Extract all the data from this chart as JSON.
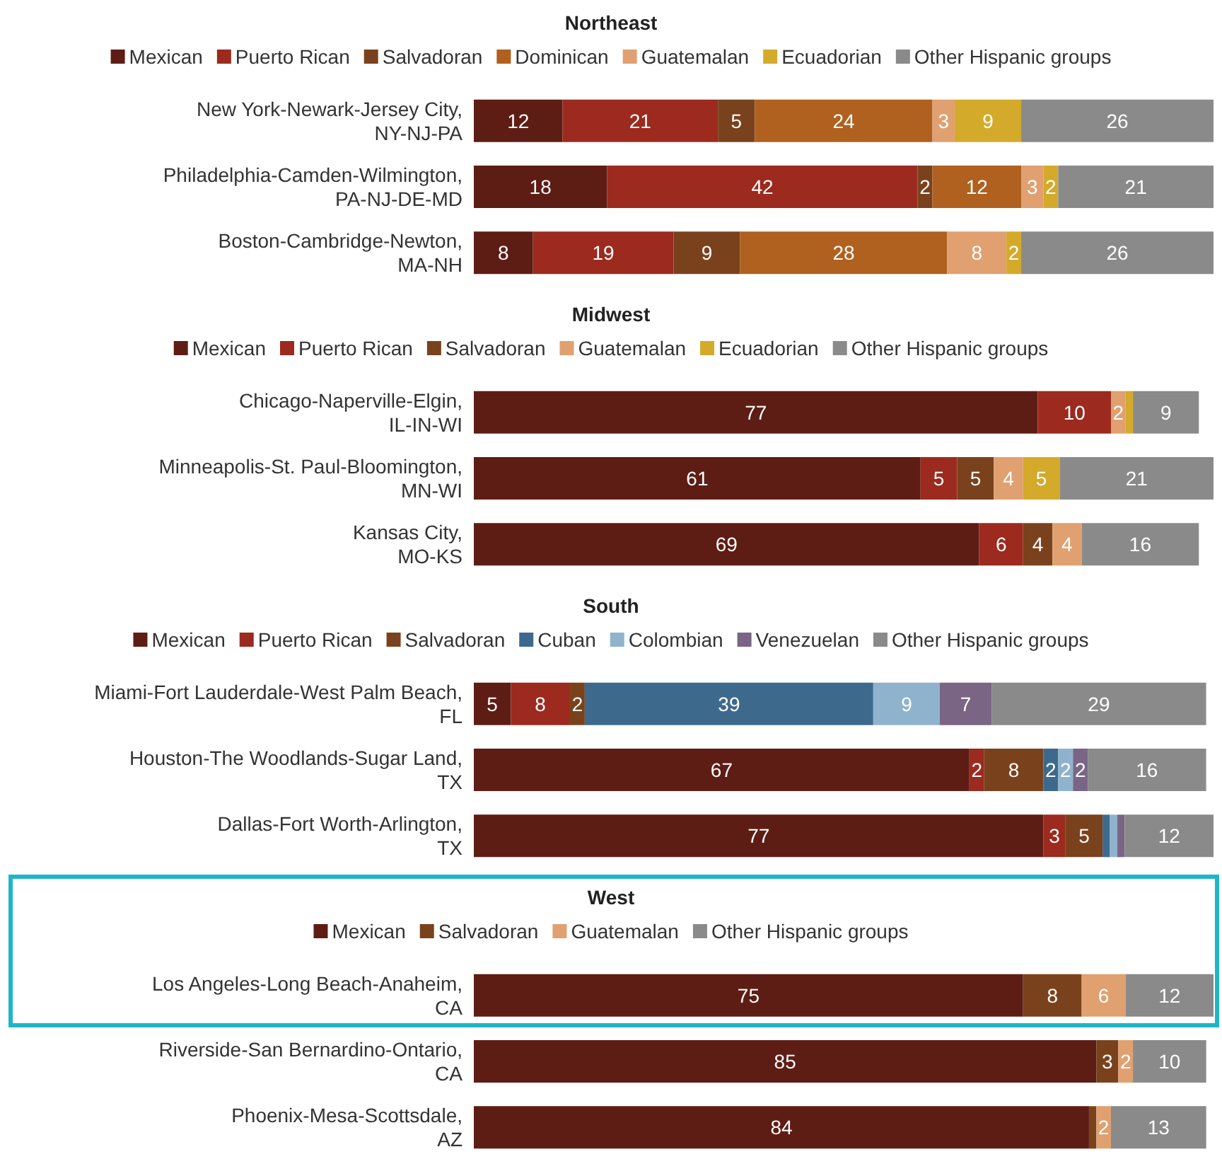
{
  "chart_data": [
    {
      "type": "bar",
      "orientation": "horizontal",
      "stacked": true,
      "title": "Northeast",
      "legend": "top",
      "tick_labels": "y",
      "categories": [
        "New York-Newark-Jersey City, NY-NJ-PA",
        "Philadelphia-Camden-Wilmington, PA-NJ-DE-MD",
        "Boston-Cambridge-Newton, MA-NH"
      ],
      "series": [
        {
          "name": "Mexican",
          "color": "#5e1d14",
          "values": [
            12,
            18,
            8
          ],
          "value_labels": [
            "12",
            "18",
            "8"
          ]
        },
        {
          "name": "Puerto Rican",
          "color": "#9c2a1e",
          "values": [
            21,
            42,
            19
          ],
          "value_labels": [
            "21",
            "42",
            "19"
          ]
        },
        {
          "name": "Salvadoran",
          "color": "#7a421c",
          "values": [
            5,
            2,
            9
          ],
          "value_labels": [
            "5",
            "2",
            "9"
          ]
        },
        {
          "name": "Dominican",
          "color": "#b0601f",
          "values": [
            24,
            12,
            28
          ],
          "value_labels": [
            "24",
            "12",
            "28"
          ]
        },
        {
          "name": "Guatemalan",
          "color": "#e0a070",
          "values": [
            3,
            3,
            8
          ],
          "value_labels": [
            "3",
            "3",
            "8"
          ]
        },
        {
          "name": "Ecuadorian",
          "color": "#d4aa2a",
          "values": [
            9,
            2,
            2
          ],
          "value_labels": [
            "9",
            "2",
            "2"
          ]
        },
        {
          "name": "Other Hispanic groups",
          "color": "#8a8a8a",
          "values": [
            26,
            21,
            26
          ],
          "value_labels": [
            "26",
            "21",
            "26"
          ]
        }
      ]
    },
    {
      "type": "bar",
      "orientation": "horizontal",
      "stacked": true,
      "title": "Midwest",
      "legend": "top",
      "tick_labels": "y",
      "categories": [
        "Chicago-Naperville-Elgin, IL-IN-WI",
        "Minneapolis-St. Paul-Bloomington, MN-WI",
        "Kansas City, MO-KS"
      ],
      "series": [
        {
          "name": "Mexican",
          "color": "#5e1d14",
          "values": [
            77,
            61,
            69
          ],
          "value_labels": [
            "77",
            "61",
            "69"
          ]
        },
        {
          "name": "Puerto Rican",
          "color": "#9c2a1e",
          "values": [
            10,
            5,
            6
          ],
          "value_labels": [
            "10",
            "5",
            "6"
          ]
        },
        {
          "name": "Salvadoran",
          "color": "#7a421c",
          "values": [
            null,
            5,
            4
          ],
          "value_labels": [
            null,
            "5",
            "4"
          ]
        },
        {
          "name": "Guatemalan",
          "color": "#e0a070",
          "values": [
            2,
            4,
            4
          ],
          "value_labels": [
            "2",
            "4",
            "4"
          ]
        },
        {
          "name": "Ecuadorian",
          "color": "#d4aa2a",
          "values": [
            1,
            5,
            null
          ],
          "value_labels": [
            null,
            "5",
            null
          ]
        },
        {
          "name": "Other Hispanic groups",
          "color": "#8a8a8a",
          "values": [
            9,
            21,
            16
          ],
          "value_labels": [
            "9",
            "21",
            "16"
          ]
        }
      ]
    },
    {
      "type": "bar",
      "orientation": "horizontal",
      "stacked": true,
      "title": "South",
      "legend": "top",
      "tick_labels": "y",
      "categories": [
        "Miami-Fort Lauderdale-West Palm Beach, FL",
        "Houston-The Woodlands-Sugar Land, TX",
        "Dallas-Fort Worth-Arlington, TX"
      ],
      "series": [
        {
          "name": "Mexican",
          "color": "#5e1d14",
          "values": [
            5,
            67,
            77
          ],
          "value_labels": [
            "5",
            "67",
            "77"
          ]
        },
        {
          "name": "Puerto Rican",
          "color": "#9c2a1e",
          "values": [
            8,
            2,
            3
          ],
          "value_labels": [
            "8",
            "2",
            "3"
          ]
        },
        {
          "name": "Salvadoran",
          "color": "#7a421c",
          "values": [
            2,
            8,
            5
          ],
          "value_labels": [
            "2",
            "8",
            "5"
          ]
        },
        {
          "name": "Cuban",
          "color": "#3d6a8c",
          "values": [
            39,
            2,
            1
          ],
          "value_labels": [
            "39",
            "2",
            null
          ]
        },
        {
          "name": "Colombian",
          "color": "#8fb3cc",
          "values": [
            9,
            2,
            1
          ],
          "value_labels": [
            "9",
            "2",
            null
          ]
        },
        {
          "name": "Venezuelan",
          "color": "#7a6585",
          "values": [
            7,
            2,
            1
          ],
          "value_labels": [
            "7",
            "2",
            null
          ]
        },
        {
          "name": "Other Hispanic groups",
          "color": "#8a8a8a",
          "values": [
            29,
            16,
            12
          ],
          "value_labels": [
            "29",
            "16",
            "12"
          ]
        }
      ]
    },
    {
      "type": "bar",
      "orientation": "horizontal",
      "stacked": true,
      "title": "West",
      "legend": "top",
      "tick_labels": "y",
      "categories": [
        "Los Angeles-Long Beach-Anaheim, CA",
        "Riverside-San Bernardino-Ontario, CA",
        "Phoenix-Mesa-Scottsdale, AZ"
      ],
      "series": [
        {
          "name": "Mexican",
          "color": "#5e1d14",
          "values": [
            75,
            85,
            84
          ],
          "value_labels": [
            "75",
            "85",
            "84"
          ]
        },
        {
          "name": "Salvadoran",
          "color": "#7a421c",
          "values": [
            8,
            3,
            1
          ],
          "value_labels": [
            "8",
            "3",
            null
          ]
        },
        {
          "name": "Guatemalan",
          "color": "#e0a070",
          "values": [
            6,
            2,
            2
          ],
          "value_labels": [
            "6",
            "2",
            "2"
          ]
        },
        {
          "name": "Other Hispanic groups",
          "color": "#8a8a8a",
          "values": [
            12,
            10,
            13
          ],
          "value_labels": [
            "12",
            "10",
            "13"
          ]
        }
      ]
    }
  ]
}
